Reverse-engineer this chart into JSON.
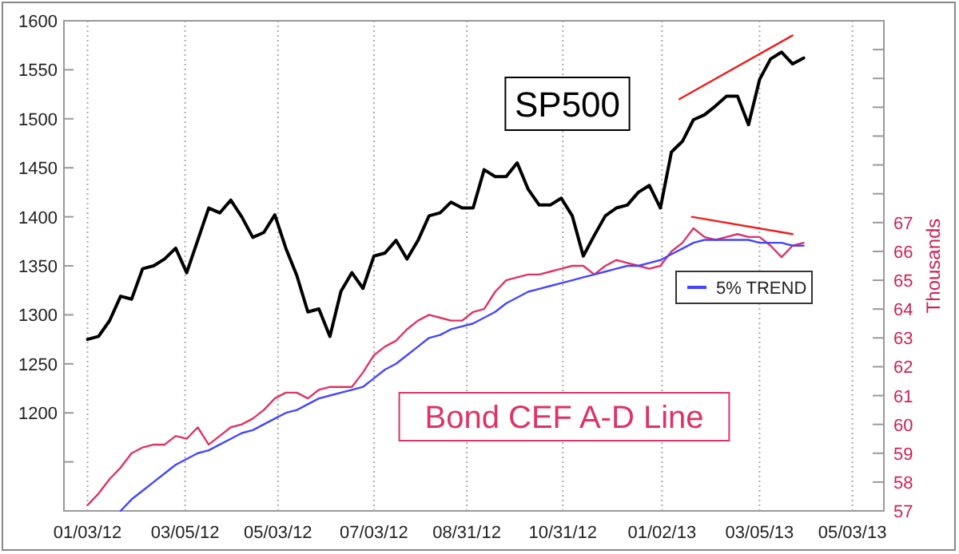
{
  "chart_data": {
    "type": "line",
    "y2label": "Thousands",
    "x": [
      "2012-01-03",
      "2012-01-10",
      "2012-01-17",
      "2012-01-24",
      "2012-01-31",
      "2012-02-07",
      "2012-02-14",
      "2012-02-21",
      "2012-02-28",
      "2012-03-06",
      "2012-03-13",
      "2012-03-20",
      "2012-03-27",
      "2012-04-03",
      "2012-04-10",
      "2012-04-17",
      "2012-04-24",
      "2012-05-01",
      "2012-05-08",
      "2012-05-15",
      "2012-05-22",
      "2012-05-29",
      "2012-06-05",
      "2012-06-12",
      "2012-06-19",
      "2012-06-26",
      "2012-07-03",
      "2012-07-10",
      "2012-07-17",
      "2012-07-24",
      "2012-07-31",
      "2012-08-07",
      "2012-08-14",
      "2012-08-21",
      "2012-08-28",
      "2012-09-04",
      "2012-09-11",
      "2012-09-18",
      "2012-09-25",
      "2012-10-02",
      "2012-10-09",
      "2012-10-16",
      "2012-10-23",
      "2012-10-30",
      "2012-11-06",
      "2012-11-13",
      "2012-11-20",
      "2012-11-27",
      "2012-12-04",
      "2012-12-11",
      "2012-12-18",
      "2012-12-25",
      "2013-01-01",
      "2013-01-08",
      "2013-01-15",
      "2013-01-22",
      "2013-01-29",
      "2013-02-05",
      "2013-02-12",
      "2013-02-19",
      "2013-02-26",
      "2013-03-05",
      "2013-03-12",
      "2013-03-19",
      "2013-03-26",
      "2013-04-02"
    ],
    "series": [
      {
        "name": "SP500",
        "color": "#000000",
        "values": [
          1275,
          1278,
          1294,
          1319,
          1316,
          1347,
          1350,
          1357,
          1368,
          1343,
          1376,
          1409,
          1404,
          1417,
          1400,
          1379,
          1384,
          1402,
          1368,
          1340,
          1303,
          1306,
          1278,
          1324,
          1343,
          1327,
          1360,
          1363,
          1376,
          1357,
          1376,
          1401,
          1404,
          1415,
          1409,
          1409,
          1448,
          1441,
          1441,
          1455,
          1428,
          1412,
          1412,
          1419,
          1401,
          1360,
          1381,
          1401,
          1409,
          1412,
          1425,
          1432,
          1409,
          1466,
          1477,
          1499,
          1504,
          1513,
          1523,
          1523,
          1494,
          1540,
          1561,
          1568,
          1556,
          1562
        ]
      },
      {
        "name": "Bond CEF A-D Line",
        "color": "#dd3366",
        "axis": "y2",
        "values": [
          57.2,
          57.6,
          58.1,
          58.5,
          59.0,
          59.2,
          59.3,
          59.3,
          59.6,
          59.5,
          59.9,
          59.3,
          59.6,
          59.9,
          60.0,
          60.2,
          60.5,
          60.9,
          61.1,
          61.1,
          60.9,
          61.2,
          61.3,
          61.3,
          61.3,
          61.8,
          62.4,
          62.7,
          62.9,
          63.3,
          63.6,
          63.8,
          63.7,
          63.6,
          63.6,
          63.9,
          64.0,
          64.6,
          65.0,
          65.1,
          65.2,
          65.2,
          65.3,
          65.4,
          65.5,
          65.5,
          65.2,
          65.5,
          65.7,
          65.6,
          65.5,
          65.4,
          65.5,
          66.0,
          66.3,
          66.8,
          66.5,
          66.4,
          66.5,
          66.6,
          66.5,
          66.5,
          66.2,
          65.8,
          66.2,
          66.3
        ]
      },
      {
        "name": "5% TREND",
        "color": "#4444ff",
        "axis": "y2",
        "values": [
          null,
          null,
          null,
          57.0,
          57.4,
          57.7,
          58.0,
          58.3,
          58.6,
          58.8,
          59.0,
          59.1,
          59.3,
          59.5,
          59.7,
          59.8,
          60.0,
          60.2,
          60.4,
          60.5,
          60.7,
          60.9,
          61.0,
          61.1,
          61.2,
          61.3,
          61.6,
          61.9,
          62.1,
          62.4,
          62.7,
          63.0,
          63.1,
          63.3,
          63.4,
          63.5,
          63.7,
          63.9,
          64.2,
          64.4,
          64.6,
          64.7,
          64.8,
          64.9,
          65.0,
          65.1,
          65.2,
          65.3,
          65.4,
          65.5,
          65.5,
          65.6,
          65.7,
          65.9,
          66.1,
          66.3,
          66.4,
          66.4,
          66.4,
          66.4,
          66.4,
          66.3,
          66.3,
          66.3,
          66.2,
          66.2
        ]
      },
      {
        "type": "line",
        "color": "#ee1c1c",
        "x": [
          "2013-01-13",
          "2013-03-26"
        ],
        "values": [
          1520,
          1585
        ]
      },
      {
        "type": "line",
        "color": "#ee1c1c",
        "axis": "y2",
        "x": [
          "2013-01-21",
          "2013-03-26"
        ],
        "values": [
          67.2,
          66.6
        ]
      }
    ],
    "xlim": [
      "2011-12-19",
      "2013-05-23"
    ],
    "xticks": [
      {
        "value": "2012-01-03",
        "label": "01/03/12"
      },
      {
        "value": "2012-03-05",
        "label": "03/05/12"
      },
      {
        "value": "2012-05-03",
        "label": "05/03/12"
      },
      {
        "value": "2012-07-03",
        "label": "07/03/12"
      },
      {
        "value": "2012-08-31",
        "label": "08/31/12"
      },
      {
        "value": "2012-10-31",
        "label": "10/31/12"
      },
      {
        "value": "2013-01-02",
        "label": "01/02/13"
      },
      {
        "value": "2013-03-05",
        "label": "03/05/13"
      },
      {
        "value": "2013-05-03",
        "label": "05/03/13"
      }
    ],
    "ylim": [
      1100,
      1600
    ],
    "yticks": [
      {
        "value": 1150,
        "label": null
      },
      1200,
      1250,
      1300,
      1350,
      1400,
      1450,
      1500,
      1550,
      1600
    ],
    "y2lim": [
      57,
      74
    ],
    "y2ticks": [
      57,
      58,
      59,
      60,
      61,
      62,
      63,
      64,
      65,
      66,
      67,
      {
        "value": 68,
        "label": null
      },
      {
        "value": 69,
        "label": null
      },
      {
        "value": 70,
        "label": null
      },
      {
        "value": 71,
        "label": null
      },
      {
        "value": 72,
        "label": null
      },
      {
        "value": 73,
        "label": null
      }
    ],
    "grid": "x",
    "legend": "right"
  }
}
